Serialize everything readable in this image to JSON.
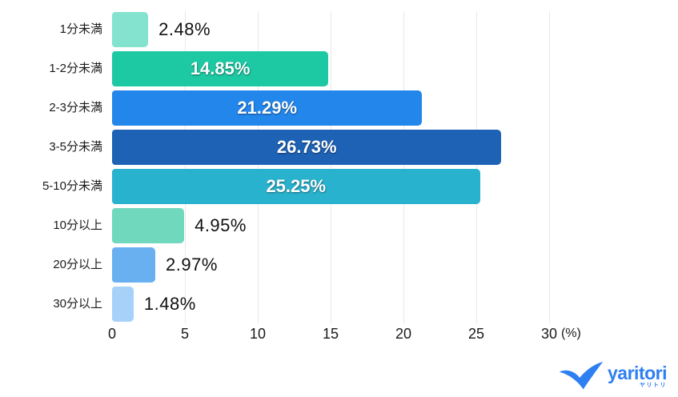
{
  "chart_data": {
    "type": "bar",
    "orientation": "horizontal",
    "categories": [
      "1分未満",
      "1-2分未満",
      "2-3分未満",
      "3-5分未満",
      "5-10分未満",
      "10分以上",
      "20分以上",
      "30分以上"
    ],
    "values": [
      2.48,
      14.85,
      21.29,
      26.73,
      25.25,
      4.95,
      2.97,
      1.48
    ],
    "value_labels": [
      "2.48%",
      "14.85%",
      "21.29%",
      "26.73%",
      "25.25%",
      "4.95%",
      "2.97%",
      "1.48%"
    ],
    "bar_colors": [
      "#83E3CE",
      "#1CC9A3",
      "#2386EB",
      "#1E62B5",
      "#29B2CE",
      "#6FD8BD",
      "#69B0F1",
      "#A7D1F8"
    ],
    "label_placement": [
      "outside",
      "inside",
      "inside",
      "inside",
      "inside",
      "outside",
      "outside",
      "outside"
    ],
    "x_ticks": [
      0,
      5,
      10,
      15,
      20,
      25,
      30
    ],
    "x_unit_label": "(%)",
    "xlim": [
      0,
      30
    ],
    "grid": "vertical",
    "background": "#FFFFFF",
    "grid_color": "#E8E8E8",
    "text_color": "#1A1A1A",
    "inside_label_color": "#FFFFFF"
  },
  "branding": {
    "logo_text": "yaritori",
    "logo_subtext": "ヤリトリ",
    "logo_color": "#2E7FF2"
  }
}
